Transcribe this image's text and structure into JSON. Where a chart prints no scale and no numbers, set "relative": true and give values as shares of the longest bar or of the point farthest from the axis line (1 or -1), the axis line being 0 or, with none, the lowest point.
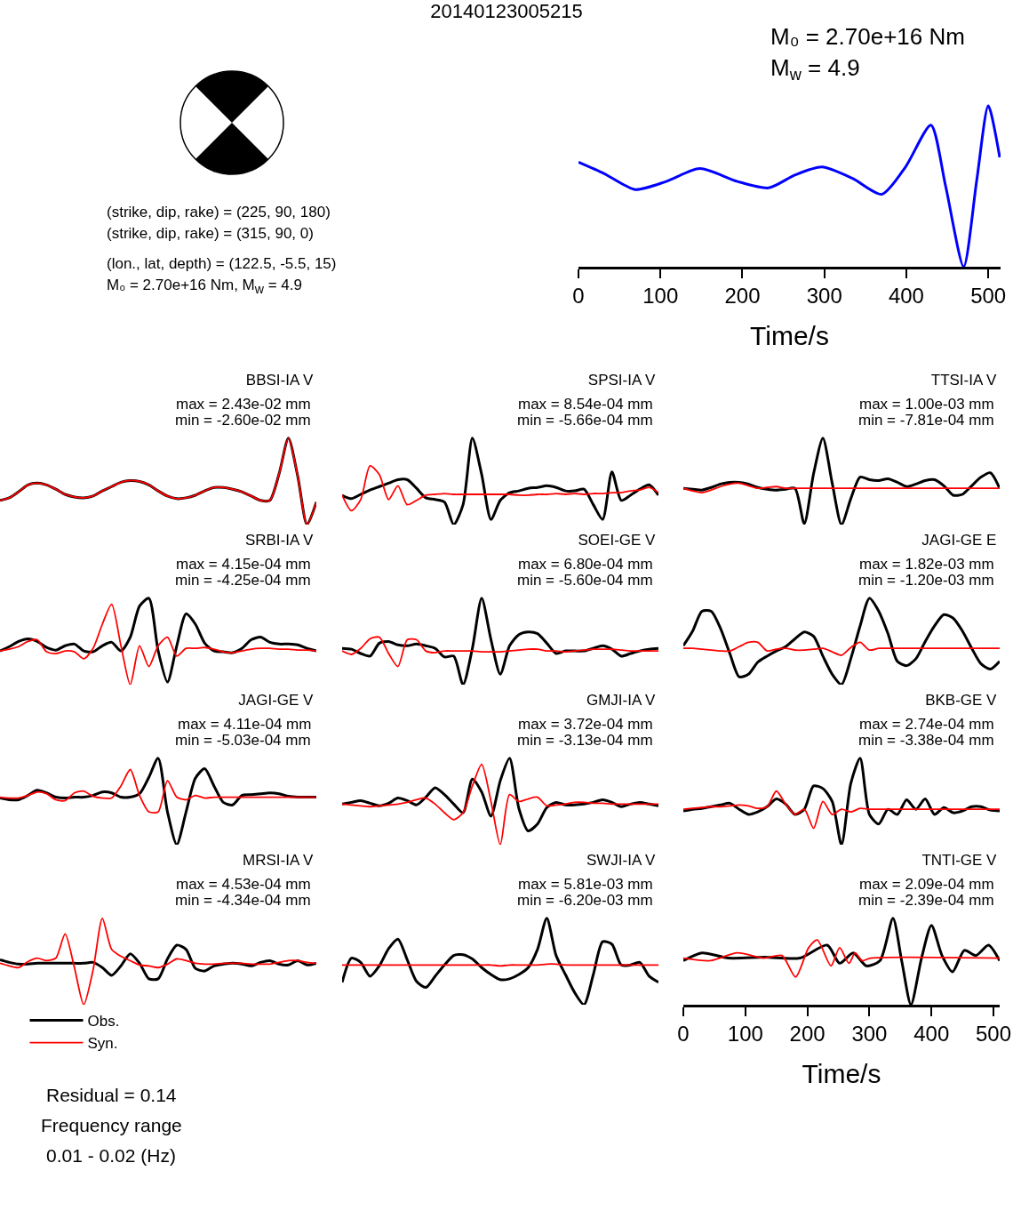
{
  "chart_data": [
    {
      "type": "other",
      "title": "20140123005215",
      "annotations": [
        "(strike, dip, rake) = (225, 90, 180)",
        "(strike, dip, rake) = (315, 90, 0)",
        "(lon., lat, depth) = (122.5, -5.5, 15)",
        "M₀ = 2.70e+16 Nm, M$_{w}$ = 4.9"
      ]
    },
    {
      "type": "line",
      "relative": true,
      "xlim": [
        0,
        515
      ],
      "xticks": [
        0,
        100,
        200,
        300,
        400,
        500
      ],
      "xlabel": "Time/s",
      "annotations": [
        "M₀ = 2.70e+16 Nm",
        "M$_{w}$ = 4.9"
      ],
      "series": [
        {
          "color": "#0000ff",
          "x": [
            0,
            31,
            69,
            107,
            148,
            194,
            232,
            264,
            297,
            334,
            370,
            399,
            430,
            448,
            470,
            486,
            500,
            514
          ],
          "values": [
            0.65,
            0.58,
            0.48,
            0.53,
            0.61,
            0.53,
            0.49,
            0.57,
            0.62,
            0.55,
            0.45,
            0.62,
            0.88,
            0.5,
            0,
            0.54,
            1,
            0.68
          ]
        }
      ]
    },
    {
      "type": "line",
      "relative": true,
      "tick_labels": false,
      "title": "BBSI-IA V",
      "annotations": [
        "max = 2.43e-02 mm",
        "min = -2.60e-02 mm"
      ],
      "categories": [
        null,
        null,
        null,
        null,
        null,
        null,
        null,
        null,
        null,
        null,
        null,
        null,
        null,
        null,
        null,
        null,
        null,
        null,
        null,
        null,
        null,
        null,
        null,
        null,
        null,
        null,
        null,
        null,
        null,
        null,
        null,
        null,
        null,
        null,
        null
      ],
      "series": [
        {
          "color": "#000000",
          "values": [
            0.28,
            0.31,
            0.38,
            0.46,
            0.48,
            0.46,
            0.41,
            0.35,
            0.32,
            0.31,
            0.33,
            0.39,
            0.44,
            0.49,
            0.51,
            0.5,
            0.46,
            0.39,
            0.33,
            0.3,
            0.31,
            0.34,
            0.39,
            0.43,
            0.43,
            0.41,
            0.38,
            0.33,
            0.28,
            0.28,
            0.59,
            1,
            0.56,
            0,
            0.26
          ]
        },
        {
          "color": "#ff0000",
          "values": [
            0.28,
            0.31,
            0.38,
            0.46,
            0.48,
            0.46,
            0.41,
            0.35,
            0.32,
            0.31,
            0.33,
            0.39,
            0.44,
            0.49,
            0.51,
            0.5,
            0.46,
            0.39,
            0.33,
            0.3,
            0.31,
            0.34,
            0.39,
            0.43,
            0.43,
            0.41,
            0.38,
            0.33,
            0.28,
            0.28,
            0.59,
            1,
            0.56,
            0,
            0.26
          ]
        }
      ]
    },
    {
      "type": "line",
      "relative": true,
      "tick_labels": false,
      "title": "SPSI-IA V",
      "annotations": [
        "max = 8.54e-04 mm",
        "min = -5.66e-04 mm"
      ],
      "categories": [
        null,
        null,
        null,
        null,
        null,
        null,
        null,
        null,
        null,
        null,
        null,
        null,
        null,
        null,
        null,
        null,
        null,
        null,
        null,
        null,
        null,
        null,
        null,
        null,
        null,
        null,
        null,
        null,
        null,
        null,
        null,
        null,
        null,
        null,
        null
      ],
      "series": [
        {
          "color": "#000000",
          "values": [
            0.34,
            0.3,
            0.35,
            0.4,
            0.44,
            0.48,
            0.52,
            0.52,
            0.42,
            0.31,
            0.29,
            0.26,
            0,
            0.23,
            1,
            0.58,
            0.06,
            0.28,
            0.37,
            0.39,
            0.42,
            0.43,
            0.45,
            0.43,
            0.39,
            0.39,
            0.41,
            0.23,
            0.06,
            0.61,
            0.28,
            0.34,
            0.41,
            0.46,
            0.34
          ]
        },
        {
          "color": "#ff0000",
          "values": [
            0.34,
            0.16,
            0.29,
            0.68,
            0.58,
            0.29,
            0.45,
            0.23,
            0.28,
            0.34,
            0.35,
            0.36,
            0.35,
            0.35,
            0.35,
            0.35,
            0.35,
            0.35,
            0.35,
            0.34,
            0.34,
            0.35,
            0.35,
            0.36,
            0.35,
            0.36,
            0.35,
            0.36,
            0.36,
            0.37,
            0.37,
            0.39,
            0.4,
            0.43,
            0.37
          ]
        }
      ]
    },
    {
      "type": "line",
      "relative": true,
      "tick_labels": false,
      "title": "TTSI-IA V",
      "annotations": [
        "max = 1.00e-03 mm",
        "min = -7.81e-04 mm"
      ],
      "categories": [
        null,
        null,
        null,
        null,
        null,
        null,
        null,
        null,
        null,
        null,
        null,
        null,
        null,
        null,
        null,
        null,
        null,
        null,
        null,
        null,
        null,
        null,
        null,
        null,
        null,
        null,
        null,
        null,
        null,
        null,
        null,
        null,
        null,
        null,
        null
      ],
      "series": [
        {
          "color": "#000000",
          "values": [
            0.42,
            0.41,
            0.4,
            0.43,
            0.47,
            0.49,
            0.49,
            0.47,
            0.43,
            0.41,
            0.4,
            0.41,
            0.42,
            0.01,
            0.59,
            1,
            0.48,
            0,
            0.3,
            0.55,
            0.52,
            0.51,
            0.53,
            0.49,
            0.44,
            0.47,
            0.51,
            0.52,
            0.45,
            0.34,
            0.35,
            0.45,
            0.55,
            0.6,
            0.42
          ]
        },
        {
          "color": "#ff0000",
          "values": [
            0.42,
            0.39,
            0.37,
            0.4,
            0.44,
            0.47,
            0.48,
            0.45,
            0.42,
            0.43,
            0.44,
            0.42,
            0.42,
            0.42,
            0.42,
            0.42,
            0.42,
            0.42,
            0.42,
            0.42,
            0.42,
            0.42,
            0.42,
            0.42,
            0.42,
            0.42,
            0.42,
            0.42,
            0.42,
            0.42,
            0.42,
            0.42,
            0.42,
            0.42,
            0.42
          ]
        }
      ]
    },
    {
      "type": "line",
      "relative": true,
      "tick_labels": false,
      "title": "SRBI-IA V",
      "annotations": [
        "max = 4.15e-04 mm",
        "min = -4.25e-04 mm"
      ],
      "categories": [
        null,
        null,
        null,
        null,
        null,
        null,
        null,
        null,
        null,
        null,
        null,
        null,
        null,
        null,
        null,
        null,
        null,
        null,
        null,
        null,
        null,
        null,
        null,
        null,
        null,
        null,
        null,
        null,
        null,
        null,
        null,
        null,
        null,
        null,
        null
      ],
      "series": [
        {
          "color": "#000000",
          "values": [
            0.39,
            0.44,
            0.5,
            0.53,
            0.5,
            0.43,
            0.4,
            0.45,
            0.47,
            0.39,
            0.38,
            0.45,
            0.49,
            0.39,
            0.55,
            0.91,
            1,
            0.39,
            0.03,
            0.45,
            0.82,
            0.7,
            0.48,
            0.39,
            0.38,
            0.37,
            0.42,
            0.52,
            0.55,
            0.49,
            0.47,
            0.47,
            0.46,
            0.42,
            0.39
          ]
        },
        {
          "color": "#ff0000",
          "values": [
            0.39,
            0.41,
            0.44,
            0.5,
            0.52,
            0.38,
            0.36,
            0.39,
            0.38,
            0.3,
            0.42,
            0.7,
            0.93,
            0.45,
            0,
            0.45,
            0.21,
            0.45,
            0.55,
            0.33,
            0.42,
            0.42,
            0.43,
            0.41,
            0.38,
            0.37,
            0.39,
            0.41,
            0.42,
            0.42,
            0.41,
            0.41,
            0.4,
            0.4,
            0.39
          ]
        }
      ]
    },
    {
      "type": "line",
      "relative": true,
      "tick_labels": false,
      "title": "SOEI-GE V",
      "annotations": [
        "max = 6.80e-04 mm",
        "min = -5.60e-04 mm"
      ],
      "categories": [
        null,
        null,
        null,
        null,
        null,
        null,
        null,
        null,
        null,
        null,
        null,
        null,
        null,
        null,
        null,
        null,
        null,
        null,
        null,
        null,
        null,
        null,
        null,
        null,
        null,
        null,
        null,
        null,
        null,
        null,
        null,
        null,
        null,
        null,
        null
      ],
      "series": [
        {
          "color": "#000000",
          "values": [
            0.42,
            0.41,
            0.36,
            0.33,
            0.48,
            0.5,
            0.46,
            0.45,
            0.47,
            0.45,
            0.42,
            0.32,
            0.33,
            0,
            0.42,
            1,
            0.52,
            0.12,
            0.45,
            0.58,
            0.61,
            0.59,
            0.48,
            0.36,
            0.39,
            0.39,
            0.39,
            0.42,
            0.45,
            0.41,
            0.33,
            0.36,
            0.39,
            0.41,
            0.42
          ]
        },
        {
          "color": "#ff0000",
          "values": [
            0.39,
            0.35,
            0.42,
            0.53,
            0.55,
            0.36,
            0.21,
            0.52,
            0.52,
            0.39,
            0.37,
            0.39,
            0.39,
            0.39,
            0.39,
            0.38,
            0.38,
            0.38,
            0.39,
            0.4,
            0.41,
            0.41,
            0.39,
            0.39,
            0.38,
            0.39,
            0.4,
            0.41,
            0.41,
            0.41,
            0.4,
            0.39,
            0.39,
            0.39,
            0.39
          ]
        }
      ]
    },
    {
      "type": "line",
      "relative": true,
      "tick_labels": false,
      "title": "JAGI-GE E",
      "annotations": [
        "max = 1.82e-03 mm",
        "min = -1.20e-03 mm"
      ],
      "categories": [
        null,
        null,
        null,
        null,
        null,
        null,
        null,
        null,
        null,
        null,
        null,
        null,
        null,
        null,
        null,
        null,
        null,
        null,
        null,
        null,
        null,
        null,
        null,
        null,
        null,
        null,
        null,
        null,
        null,
        null,
        null,
        null,
        null,
        null,
        null
      ],
      "series": [
        {
          "color": "#000000",
          "values": [
            0.45,
            0.62,
            0.85,
            0.85,
            0.65,
            0.36,
            0.09,
            0.12,
            0.26,
            0.33,
            0.39,
            0.44,
            0.53,
            0.61,
            0.56,
            0.33,
            0.12,
            0,
            0.3,
            0.68,
            1,
            0.85,
            0.59,
            0.27,
            0.22,
            0.3,
            0.5,
            0.68,
            0.81,
            0.77,
            0.62,
            0.42,
            0.24,
            0.18,
            0.27
          ]
        },
        {
          "color": "#ff0000",
          "values": [
            0.42,
            0.42,
            0.41,
            0.4,
            0.39,
            0.39,
            0.44,
            0.49,
            0.49,
            0.39,
            0.41,
            0.42,
            0.4,
            0.4,
            0.41,
            0.42,
            0.38,
            0.34,
            0.43,
            0.49,
            0.4,
            0.42,
            0.42,
            0.42,
            0.42,
            0.42,
            0.42,
            0.42,
            0.42,
            0.42,
            0.42,
            0.42,
            0.42,
            0.42,
            0.42
          ]
        }
      ]
    },
    {
      "type": "line",
      "relative": true,
      "tick_labels": false,
      "title": "JAGI-GE V",
      "annotations": [
        "max = 4.11e-04 mm",
        "min = -5.03e-04 mm"
      ],
      "categories": [
        null,
        null,
        null,
        null,
        null,
        null,
        null,
        null,
        null,
        null,
        null,
        null,
        null,
        null,
        null,
        null,
        null,
        null,
        null,
        null,
        null,
        null,
        null,
        null,
        null,
        null,
        null,
        null,
        null,
        null,
        null,
        null,
        null,
        null,
        null
      ],
      "series": [
        {
          "color": "#000000",
          "values": [
            0.54,
            0.52,
            0.52,
            0.57,
            0.63,
            0.6,
            0.55,
            0.54,
            0.55,
            0.55,
            0.57,
            0.61,
            0.6,
            0.55,
            0.55,
            0.59,
            0.78,
            1,
            0.38,
            0,
            0.38,
            0.77,
            0.88,
            0.68,
            0.49,
            0.46,
            0.57,
            0.58,
            0.59,
            0.6,
            0.59,
            0.56,
            0.55,
            0.55,
            0.55
          ]
        },
        {
          "color": "#ff0000",
          "values": [
            0.55,
            0.54,
            0.54,
            0.57,
            0.61,
            0.59,
            0.52,
            0.51,
            0.6,
            0.62,
            0.56,
            0.54,
            0.54,
            0.68,
            0.87,
            0.57,
            0.38,
            0.38,
            0.74,
            0.55,
            0.52,
            0.57,
            0.54,
            0.55,
            0.55,
            0.55,
            0.55,
            0.55,
            0.55,
            0.55,
            0.55,
            0.55,
            0.55,
            0.55,
            0.55
          ]
        }
      ]
    },
    {
      "type": "line",
      "relative": true,
      "tick_labels": false,
      "title": "GMJI-IA V",
      "annotations": [
        "max = 3.72e-04 mm",
        "min = -3.13e-04 mm"
      ],
      "categories": [
        null,
        null,
        null,
        null,
        null,
        null,
        null,
        null,
        null,
        null,
        null,
        null,
        null,
        null,
        null,
        null,
        null,
        null,
        null,
        null,
        null,
        null,
        null,
        null,
        null,
        null,
        null,
        null,
        null,
        null,
        null,
        null,
        null,
        null,
        null
      ],
      "series": [
        {
          "color": "#000000",
          "values": [
            0.47,
            0.49,
            0.51,
            0.48,
            0.45,
            0.48,
            0.54,
            0.51,
            0.46,
            0.55,
            0.66,
            0.58,
            0.47,
            0.37,
            0.76,
            0.61,
            0.33,
            0.74,
            1,
            0.42,
            0.16,
            0.24,
            0.43,
            0.49,
            0.46,
            0.46,
            0.47,
            0.49,
            0.52,
            0.49,
            0.44,
            0.47,
            0.49,
            0.47,
            0.45
          ]
        },
        {
          "color": "#ff0000",
          "values": [
            0.47,
            0.46,
            0.45,
            0.44,
            0.45,
            0.46,
            0.47,
            0.49,
            0.52,
            0.54,
            0.47,
            0.37,
            0.29,
            0.37,
            0.68,
            0.93,
            0.5,
            0,
            0.58,
            0.5,
            0.53,
            0.55,
            0.45,
            0.46,
            0.47,
            0.49,
            0.49,
            0.48,
            0.48,
            0.47,
            0.47,
            0.47,
            0.47,
            0.47,
            0.47
          ]
        }
      ]
    },
    {
      "type": "line",
      "relative": true,
      "tick_labels": false,
      "title": "BKB-GE V",
      "annotations": [
        "max = 2.74e-04 mm",
        "min = -3.38e-04 mm"
      ],
      "categories": [
        null,
        null,
        null,
        null,
        null,
        null,
        null,
        null,
        null,
        null,
        null,
        null,
        null,
        null,
        null,
        null,
        null,
        null,
        null,
        null,
        null,
        null,
        null,
        null,
        null,
        null,
        null,
        null,
        null,
        null,
        null,
        null,
        null,
        null,
        null
      ],
      "series": [
        {
          "color": "#000000",
          "values": [
            0.39,
            0.41,
            0.42,
            0.44,
            0.46,
            0.48,
            0.41,
            0.35,
            0.38,
            0.44,
            0.53,
            0.47,
            0.35,
            0.41,
            0.68,
            0.65,
            0.5,
            0,
            0.71,
            1,
            0.35,
            0.24,
            0.41,
            0.35,
            0.52,
            0.41,
            0.53,
            0.35,
            0.43,
            0.37,
            0.39,
            0.44,
            0.44,
            0.4,
            0.39
          ]
        },
        {
          "color": "#ff0000",
          "values": [
            0.41,
            0.42,
            0.43,
            0.44,
            0.44,
            0.45,
            0.46,
            0.45,
            0.42,
            0.44,
            0.62,
            0.47,
            0.35,
            0.41,
            0.19,
            0.5,
            0.35,
            0.41,
            0.38,
            0.42,
            0.41,
            0.41,
            0.41,
            0.41,
            0.41,
            0.41,
            0.41,
            0.41,
            0.41,
            0.41,
            0.41,
            0.41,
            0.41,
            0.41,
            0.41
          ]
        }
      ]
    },
    {
      "type": "line",
      "relative": true,
      "tick_labels": false,
      "title": "MRSI-IA V",
      "legend": "bottom left",
      "annotations": [
        "max = 4.53e-04 mm",
        "min = -4.34e-04 mm",
        "Residual = 0.14",
        "Frequency range",
        "0.01 - 0.02 (Hz)"
      ],
      "categories": [
        null,
        null,
        null,
        null,
        null,
        null,
        null,
        null,
        null,
        null,
        null,
        null,
        null,
        null,
        null,
        null,
        null,
        null,
        null,
        null,
        null,
        null,
        null,
        null,
        null,
        null,
        null,
        null,
        null,
        null,
        null,
        null,
        null,
        null,
        null
      ],
      "series": [
        {
          "name": "Obs.",
          "color": "#000000",
          "values": [
            0.52,
            0.49,
            0.47,
            0.47,
            0.48,
            0.48,
            0.48,
            0.48,
            0.48,
            0.48,
            0.49,
            0.43,
            0.34,
            0.45,
            0.59,
            0.48,
            0.3,
            0.3,
            0.53,
            0.69,
            0.64,
            0.42,
            0.39,
            0.45,
            0.47,
            0.48,
            0.47,
            0.45,
            0.49,
            0.51,
            0.47,
            0.46,
            0.51,
            0.46,
            0.48
          ]
        },
        {
          "name": "Syn.",
          "color": "#ff0000",
          "values": [
            0.48,
            0.45,
            0.43,
            0.5,
            0.54,
            0.51,
            0.54,
            0.82,
            0.43,
            0,
            0.4,
            1,
            0.64,
            0.56,
            0.51,
            0.46,
            0.45,
            0.43,
            0.47,
            0.53,
            0.51,
            0.48,
            0.47,
            0.47,
            0.48,
            0.48,
            0.48,
            0.47,
            0.47,
            0.47,
            0.49,
            0.51,
            0.51,
            0.49,
            0.48
          ]
        }
      ]
    },
    {
      "type": "line",
      "relative": true,
      "tick_labels": false,
      "title": "SWJI-IA V",
      "annotations": [
        "max = 5.81e-03 mm",
        "min = -6.20e-03 mm"
      ],
      "categories": [
        null,
        null,
        null,
        null,
        null,
        null,
        null,
        null,
        null,
        null,
        null,
        null,
        null,
        null,
        null,
        null,
        null,
        null,
        null,
        null,
        null,
        null,
        null,
        null,
        null,
        null,
        null,
        null,
        null,
        null,
        null,
        null,
        null,
        null,
        null
      ],
      "series": [
        {
          "color": "#000000",
          "values": [
            0.26,
            0.54,
            0.49,
            0.33,
            0.45,
            0.65,
            0.76,
            0.52,
            0.27,
            0.2,
            0.33,
            0.46,
            0.57,
            0.58,
            0.53,
            0.43,
            0.35,
            0.29,
            0.3,
            0.35,
            0.43,
            0.64,
            1,
            0.57,
            0.35,
            0.14,
            0,
            0.35,
            0.73,
            0.7,
            0.46,
            0.46,
            0.49,
            0.33,
            0.26
          ]
        },
        {
          "color": "#ff0000",
          "values": [
            0.46,
            0.46,
            0.46,
            0.46,
            0.46,
            0.46,
            0.46,
            0.46,
            0.46,
            0.46,
            0.46,
            0.46,
            0.46,
            0.46,
            0.46,
            0.46,
            0.46,
            0.45,
            0.46,
            0.46,
            0.46,
            0.46,
            0.47,
            0.47,
            0.46,
            0.46,
            0.46,
            0.46,
            0.46,
            0.46,
            0.46,
            0.46,
            0.46,
            0.46,
            0.46
          ]
        }
      ]
    },
    {
      "type": "line",
      "relative": true,
      "xlim": [
        0,
        510
      ],
      "xticks": [
        0,
        100,
        200,
        300,
        400,
        500
      ],
      "tick_labels": "x",
      "xlabel": "Time/s",
      "title": "TNTI-GE V",
      "annotations": [
        "max = 2.09e-04 mm",
        "min = -2.39e-04 mm"
      ],
      "series": [
        {
          "color": "#000000",
          "x": [
            0,
            30,
            73,
            131,
            188,
            232,
            252,
            274,
            295,
            317,
            338,
            352,
            367,
            384,
            400,
            417,
            434,
            453,
            472,
            492,
            510
          ],
          "values": [
            0.51,
            0.6,
            0.54,
            0.55,
            0.54,
            0.69,
            0.48,
            0.6,
            0.45,
            0.51,
            1,
            0.51,
            0,
            0.54,
            0.92,
            0.57,
            0.38,
            0.63,
            0.57,
            0.69,
            0.51
          ]
        },
        {
          "color": "#ff0000",
          "x": [
            0,
            44,
            87,
            130,
            159,
            181,
            202,
            216,
            238,
            252,
            267,
            277,
            288,
            302,
            510
          ],
          "values": [
            0.54,
            0.51,
            0.6,
            0.54,
            0.57,
            0.32,
            0.66,
            0.75,
            0.45,
            0.66,
            0.48,
            0.6,
            0.51,
            0.54,
            0.54
          ]
        }
      ]
    }
  ]
}
